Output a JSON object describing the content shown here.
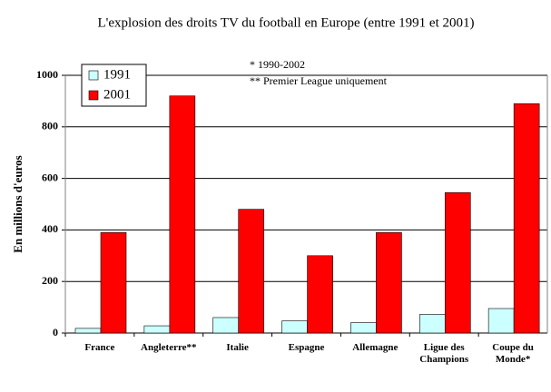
{
  "chart_data": {
    "type": "bar",
    "title": "L'explosion des droits TV du football en Europe (entre 1991 et 2001)",
    "y_label": "En millions d'euros",
    "annotations": [
      "*  1990-2002",
      "** Premier League uniquement"
    ],
    "categories": [
      "France",
      "Angleterre**",
      "Italie",
      "Espagne",
      "Allemagne",
      "Ligue des Champions",
      "Coupe du Monde*"
    ],
    "series": [
      {
        "name": "1991",
        "color": "#ccffff",
        "values": [
          18,
          28,
          60,
          47,
          40,
          72,
          95
        ]
      },
      {
        "name": "2001",
        "color": "#ff0000",
        "values": [
          390,
          920,
          480,
          300,
          390,
          545,
          890
        ]
      }
    ],
    "ylim": [
      0,
      1000
    ],
    "yticks": [
      0,
      200,
      400,
      600,
      800,
      1000
    ],
    "grid": true,
    "legend": "top-left"
  }
}
